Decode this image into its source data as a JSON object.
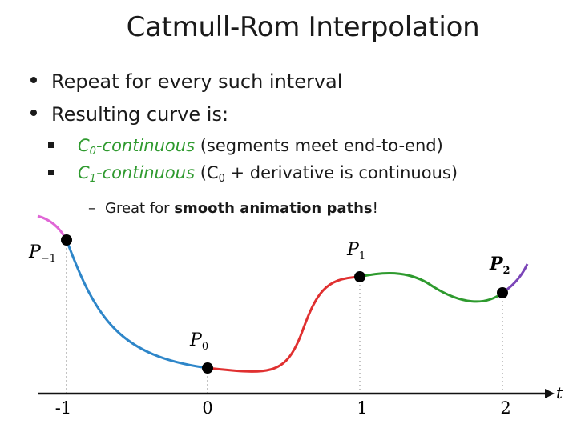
{
  "title": "Catmull-Rom Interpolation",
  "bullets": [
    "Repeat for every such interval",
    "Resulting curve is:"
  ],
  "sub_items": [
    {
      "green_prefix": "C",
      "green_sub": "0",
      "green_suffix": "-continuous",
      "rest": " (segments meet end-to-end)"
    },
    {
      "green_prefix": "C",
      "green_sub": "1",
      "green_suffix": "-continuous",
      "rest_a": " (C",
      "rest_sub": "0",
      "rest_b": " + derivative is continuous)"
    }
  ],
  "subsub": {
    "dash": "–",
    "pre": "Great for ",
    "bold": "smooth animation paths",
    "post": "!"
  },
  "diagram": {
    "axis_label": "t",
    "ticks": [
      "-1",
      "0",
      "1",
      "2"
    ],
    "points": [
      {
        "base": "P",
        "sub": "−1"
      },
      {
        "base": "P",
        "sub": "0"
      },
      {
        "base": "P",
        "sub": "1"
      },
      {
        "base": "P",
        "sub": "2"
      }
    ],
    "colors": {
      "outer_left": "#e066d6",
      "seg1": "#2e86c9",
      "seg2": "#e03030",
      "seg3": "#2e9a2e",
      "outer_right": "#7b45b8",
      "axis": "#111111"
    }
  }
}
